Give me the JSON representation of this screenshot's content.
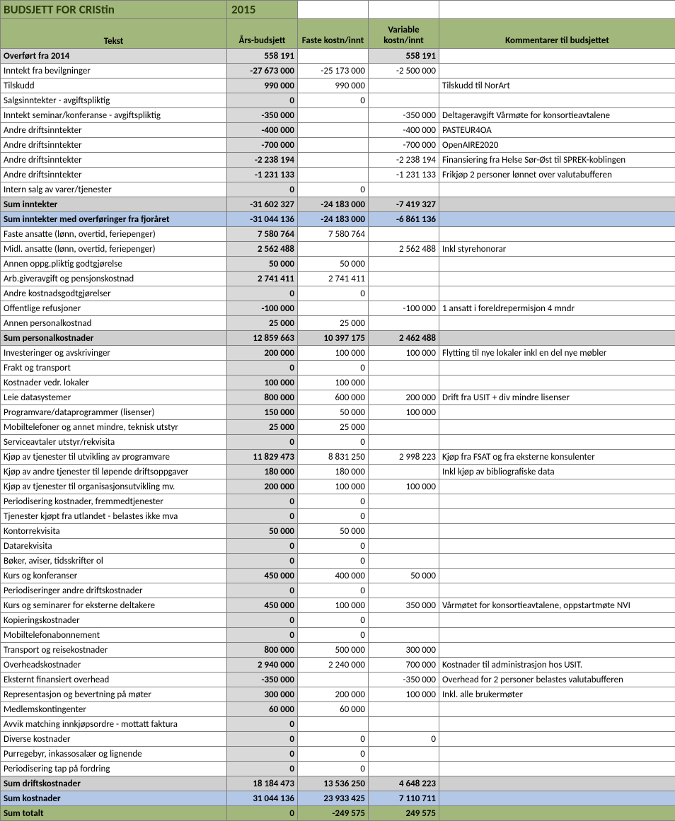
{
  "header": {
    "title": "BUDSJETT FOR CRIStin",
    "year": "2015"
  },
  "columns": {
    "tekst": "Tekst",
    "aars": "Års-budsjett",
    "faste": "Faste kostn/innt",
    "variable": "Variable kostn/innt",
    "kommentarer": "Kommentarer til budsjettet"
  },
  "rows": [
    {
      "type": "gray",
      "tekst": "Overført fra 2014",
      "aars": "558 191",
      "faste": "",
      "variable": "558 191",
      "kom": ""
    },
    {
      "type": "n",
      "tekst": "Inntekt fra bevilgninger",
      "aars": "-27 673 000",
      "faste": "-25 173 000",
      "variable": "-2 500 000",
      "kom": ""
    },
    {
      "type": "n",
      "tekst": "Tilskudd",
      "aars": "990 000",
      "faste": "990 000",
      "variable": "",
      "kom": "Tilskudd til NorArt"
    },
    {
      "type": "n",
      "tekst": "Salgsinntekter - avgiftspliktig",
      "aars": "0",
      "faste": "0",
      "variable": "",
      "kom": ""
    },
    {
      "type": "n",
      "tekst": "Inntekt seminar/konferanse - avgiftspliktig",
      "aars": "-350 000",
      "faste": "",
      "variable": "-350 000",
      "kom": "Deltageravgift Vårmøte for konsortieavtalene"
    },
    {
      "type": "n",
      "tekst": "Andre driftsinntekter",
      "aars": "-400 000",
      "faste": "",
      "variable": "-400 000",
      "kom": "PASTEUR4OA"
    },
    {
      "type": "n",
      "tekst": "Andre driftsinntekter",
      "aars": "-700 000",
      "faste": "",
      "variable": "-700 000",
      "kom": "OpenAIRE2020"
    },
    {
      "type": "n",
      "tekst": "Andre driftsinntekter",
      "aars": "-2 238 194",
      "faste": "",
      "variable": "-2 238 194",
      "kom": "Finansiering fra Helse Sør-Øst til SPREK-koblingen"
    },
    {
      "type": "n",
      "tekst": "Andre driftsinntekter",
      "aars": "-1 231 133",
      "faste": "",
      "variable": "-1 231 133",
      "kom": "Frikjøp 2 personer lønnet over valutabufferen"
    },
    {
      "type": "n",
      "tekst": "Intern salg av varer/tjenester",
      "aars": "0",
      "faste": "0",
      "variable": "",
      "kom": ""
    },
    {
      "type": "sumgray",
      "tekst": "Sum inntekter",
      "aars": "-31 602 327",
      "faste": "-24 183 000",
      "variable": "-7 419 327",
      "kom": ""
    },
    {
      "type": "sumblue",
      "tekst": "Sum inntekter med overføringer fra fjoråret",
      "aars": "-31 044 136",
      "faste": "-24 183 000",
      "variable": "-6 861 136",
      "kom": ""
    },
    {
      "type": "n",
      "tekst": "Faste ansatte (lønn, overtid, feriepenger)",
      "aars": "7 580 764",
      "faste": "7 580 764",
      "variable": "",
      "kom": ""
    },
    {
      "type": "n",
      "tekst": "Midl. ansatte (lønn, overtid, feriepenger)",
      "aars": "2 562 488",
      "faste": "",
      "variable": "2 562 488",
      "kom": "Inkl styrehonorar"
    },
    {
      "type": "n",
      "tekst": "Annen oppg.pliktig godtgjørelse",
      "aars": "50 000",
      "faste": "50 000",
      "variable": "",
      "kom": ""
    },
    {
      "type": "n",
      "tekst": "Arb.giveravgift og pensjonskostnad",
      "aars": "2 741 411",
      "faste": "2 741 411",
      "variable": "",
      "kom": ""
    },
    {
      "type": "n",
      "tekst": "Andre kostnadsgodtgjørelser",
      "aars": "0",
      "faste": "0",
      "variable": "",
      "kom": ""
    },
    {
      "type": "n",
      "tekst": "Offentlige refusjoner",
      "aars": "-100 000",
      "faste": "",
      "variable": "-100 000",
      "kom": "1 ansatt i foreldrepermisjon 4 mndr"
    },
    {
      "type": "n",
      "tekst": "Annen personalkostnad",
      "aars": "25 000",
      "faste": "25 000",
      "variable": "",
      "kom": ""
    },
    {
      "type": "sumgray",
      "tekst": "Sum personalkostnader",
      "aars": "12 859 663",
      "faste": "10 397 175",
      "variable": "2 462 488",
      "kom": ""
    },
    {
      "type": "n",
      "tekst": "Investeringer og avskrivinger",
      "aars": "200 000",
      "faste": "100 000",
      "variable": "100 000",
      "kom": "Flytting til nye lokaler inkl en del nye møbler"
    },
    {
      "type": "n",
      "tekst": "Frakt og transport",
      "aars": "0",
      "faste": "0",
      "variable": "",
      "kom": ""
    },
    {
      "type": "n",
      "tekst": "Kostnader vedr. lokaler",
      "aars": "100 000",
      "faste": "100 000",
      "variable": "",
      "kom": ""
    },
    {
      "type": "n",
      "tekst": "Leie datasystemer",
      "aars": "800 000",
      "faste": "600 000",
      "variable": "200 000",
      "kom": "Drift fra USIT + div mindre lisenser"
    },
    {
      "type": "n",
      "tekst": "Programvare/dataprogrammer (lisenser)",
      "aars": "150 000",
      "faste": "50 000",
      "variable": "100 000",
      "kom": ""
    },
    {
      "type": "n",
      "tekst": "Mobiltelefoner og annet mindre, teknisk utstyr",
      "aars": "25 000",
      "faste": "25 000",
      "variable": "",
      "kom": ""
    },
    {
      "type": "n",
      "tekst": "Serviceavtaler utstyr/rekvisita",
      "aars": "0",
      "faste": "0",
      "variable": "",
      "kom": ""
    },
    {
      "type": "n",
      "tekst": "Kjøp av tjenester til utvikling av programvare",
      "aars": "11 829 473",
      "faste": "8 831 250",
      "variable": "2 998 223",
      "kom": "Kjøp fra FSAT og fra eksterne konsulenter"
    },
    {
      "type": "n",
      "tekst": "Kjøp av andre tjenester til løpende driftsoppgaver",
      "aars": "180 000",
      "faste": "180 000",
      "variable": "",
      "kom": "Inkl kjøp av bibliografiske data"
    },
    {
      "type": "n",
      "tekst": "Kjøp av tjenester til organisasjonsutvikling mv.",
      "aars": "200 000",
      "faste": "100 000",
      "variable": "100 000",
      "kom": ""
    },
    {
      "type": "n",
      "tekst": "Periodisering kostnader, fremmedtjenester",
      "aars": "0",
      "faste": "0",
      "variable": "",
      "kom": ""
    },
    {
      "type": "n",
      "tekst": "Tjenester kjøpt fra utlandet - belastes ikke mva",
      "aars": "0",
      "faste": "0",
      "variable": "",
      "kom": ""
    },
    {
      "type": "n",
      "tekst": "Kontorrekvisita",
      "aars": "50 000",
      "faste": "50 000",
      "variable": "",
      "kom": ""
    },
    {
      "type": "n",
      "tekst": "Datarekvisita",
      "aars": "0",
      "faste": "0",
      "variable": "",
      "kom": ""
    },
    {
      "type": "n",
      "tekst": "Bøker, aviser, tidsskrifter ol",
      "aars": "0",
      "faste": "0",
      "variable": "",
      "kom": ""
    },
    {
      "type": "n",
      "tekst": "Kurs og konferanser",
      "aars": "450 000",
      "faste": "400 000",
      "variable": "50 000",
      "kom": ""
    },
    {
      "type": "n",
      "tekst": "Periodiseringer andre driftskostnader",
      "aars": "0",
      "faste": "0",
      "variable": "",
      "kom": ""
    },
    {
      "type": "n",
      "tekst": "Kurs og seminarer for eksterne deltakere",
      "aars": "450 000",
      "faste": "100 000",
      "variable": "350 000",
      "kom": "Vårmøtet for konsortieavtalene, oppstartmøte NVI"
    },
    {
      "type": "n",
      "tekst": "Kopieringskostnader",
      "aars": "0",
      "faste": "0",
      "variable": "",
      "kom": ""
    },
    {
      "type": "n",
      "tekst": "Mobiltelefonabonnement",
      "aars": "0",
      "faste": "0",
      "variable": "",
      "kom": ""
    },
    {
      "type": "n",
      "tekst": "Transport og reisekostnader",
      "aars": "800 000",
      "faste": "500 000",
      "variable": "300 000",
      "kom": ""
    },
    {
      "type": "n",
      "tekst": "Overheadskostnader",
      "aars": "2 940 000",
      "faste": "2 240 000",
      "variable": "700 000",
      "kom": "Kostnader til administrasjon hos USIT."
    },
    {
      "type": "n",
      "tekst": "Eksternt finansiert overhead",
      "aars": "-350 000",
      "faste": "",
      "variable": "-350 000",
      "kom": "Overhead for 2 personer belastes valutabufferen"
    },
    {
      "type": "n",
      "tekst": "Representasjon og bevertning på møter",
      "aars": "300 000",
      "faste": "200 000",
      "variable": "100 000",
      "kom": "Inkl. alle brukermøter"
    },
    {
      "type": "n",
      "tekst": "Medlemskontingenter",
      "aars": "60 000",
      "faste": "60 000",
      "variable": "",
      "kom": ""
    },
    {
      "type": "n",
      "tekst": "Avvik matching innkjøpsordre - mottatt faktura",
      "aars": "0",
      "faste": "",
      "variable": "",
      "kom": ""
    },
    {
      "type": "n",
      "tekst": "Diverse kostnader",
      "aars": "0",
      "faste": "0",
      "variable": "0",
      "kom": ""
    },
    {
      "type": "n",
      "tekst": "Purregebyr, inkassosalær og lignende",
      "aars": "0",
      "faste": "0",
      "variable": "",
      "kom": ""
    },
    {
      "type": "n",
      "tekst": "Periodisering tap på fordring",
      "aars": "0",
      "faste": "0",
      "variable": "",
      "kom": ""
    },
    {
      "type": "sumgray",
      "tekst": "Sum driftskostnader",
      "aars": "18 184 473",
      "faste": "13 536 250",
      "variable": "4 648 223",
      "kom": ""
    },
    {
      "type": "sumblue",
      "tekst": "Sum kostnader",
      "aars": "31 044 136",
      "faste": "23 933 425",
      "variable": "7 110 711",
      "kom": ""
    },
    {
      "type": "sumgreen",
      "tekst": "Sum totalt",
      "aars": "0",
      "faste": "-249 575",
      "variable": "249 575",
      "kom": ""
    }
  ]
}
